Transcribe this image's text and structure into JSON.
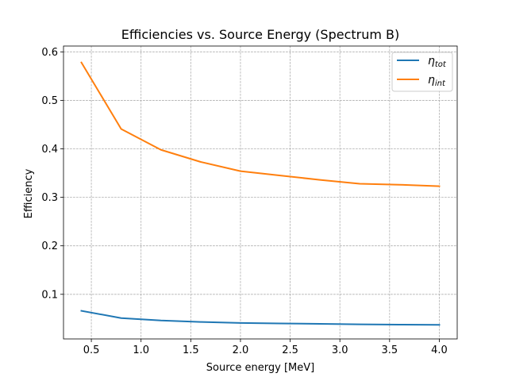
{
  "chart_data": {
    "type": "line",
    "title": "Efficiencies vs. Source Energy (Spectrum B)",
    "xlabel": "Source energy [MeV]",
    "ylabel": "Efficiency",
    "xlim": [
      0.22,
      4.18
    ],
    "ylim": [
      0.008,
      0.612
    ],
    "xticks": [
      0.5,
      1.0,
      1.5,
      2.0,
      2.5,
      3.0,
      3.5,
      4.0
    ],
    "xtick_labels": [
      "0.5",
      "1.0",
      "1.5",
      "2.0",
      "2.5",
      "3.0",
      "3.5",
      "4.0"
    ],
    "yticks": [
      0.1,
      0.2,
      0.3,
      0.4,
      0.5,
      0.6
    ],
    "ytick_labels": [
      "0.1",
      "0.2",
      "0.3",
      "0.4",
      "0.5",
      "0.6"
    ],
    "grid": true,
    "legend_position": "top-right",
    "series": [
      {
        "name": "tot",
        "color": "#1f77b4",
        "x": [
          0.4,
          0.8,
          1.2,
          1.6,
          2.0,
          2.4,
          2.8,
          3.2,
          3.6,
          4.0
        ],
        "y": [
          0.066,
          0.051,
          0.046,
          0.043,
          0.041,
          0.04,
          0.039,
          0.038,
          0.0375,
          0.037
        ]
      },
      {
        "name": "int",
        "color": "#ff7f0e",
        "x": [
          0.4,
          0.8,
          1.2,
          1.6,
          2.0,
          2.4,
          2.8,
          3.2,
          3.6,
          4.0
        ],
        "y": [
          0.578,
          0.441,
          0.398,
          0.373,
          0.354,
          0.345,
          0.336,
          0.328,
          0.326,
          0.323
        ]
      }
    ]
  }
}
